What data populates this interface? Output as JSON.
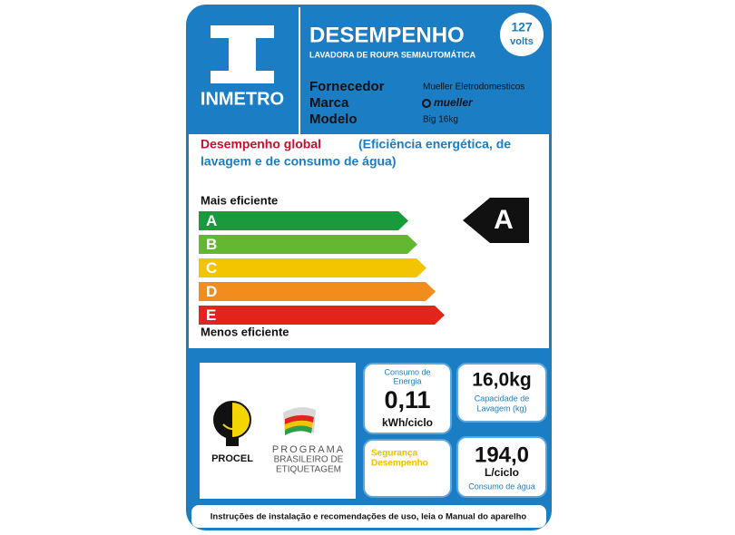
{
  "header": {
    "logo": "INMETRO",
    "title": "DESEMPENHO",
    "subtitle": "LAVADORA DE ROUPA SEMIAUTOMÁTICA",
    "voltage": "127",
    "voltage_unit": "volts"
  },
  "supplier": {
    "rows": [
      [
        "Fornecedor",
        "Mueller Eletrodomesticos"
      ],
      [
        "Marca",
        "mueller"
      ],
      [
        "Modelo",
        "Big 16kg"
      ]
    ]
  },
  "performance": {
    "title": "Desempenho global",
    "subtitle_line1": "(Eficiência energética, de",
    "subtitle_line2": "lavagem e de consumo de água)",
    "top_label": "Mais eficiente",
    "bottom_label": "Menos eficiente",
    "classes": [
      "A",
      "B",
      "C",
      "D",
      "E"
    ],
    "rating": "A"
  },
  "energy": {
    "label_line1": "Consumo de",
    "label_line2": "Energia",
    "value": "0,11",
    "unit": "kWh/ciclo"
  },
  "capacity": {
    "value": "16,0kg",
    "label_line1": "Capacidade de",
    "label_line2": "Lavagem (kg)"
  },
  "safety": {
    "line1": "Segurança",
    "line2": "Desempenho"
  },
  "water": {
    "value": "194,0",
    "unit": "L/ciclo",
    "label": "Consumo  de água"
  },
  "logos": {
    "procel": "PROCEL",
    "pbe_line1": "PROGRAMA",
    "pbe_line2": "BRASILEIRO DE",
    "pbe_line3": "ETIQUETAGEM"
  },
  "footer": "Instruções de instalação e recomendações de uso, leia o Manual do aparelho"
}
